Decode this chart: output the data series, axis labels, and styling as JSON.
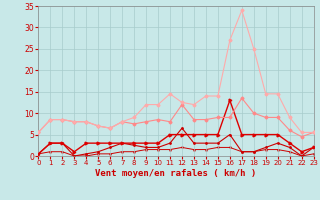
{
  "x": [
    0,
    1,
    2,
    3,
    4,
    5,
    6,
    7,
    8,
    9,
    10,
    11,
    12,
    13,
    14,
    15,
    16,
    17,
    18,
    19,
    20,
    21,
    22,
    23
  ],
  "series": [
    {
      "label": "lightest_pink",
      "color": "#ffaaaa",
      "linewidth": 0.8,
      "marker": "D",
      "markersize": 1.5,
      "values": [
        5.5,
        8.5,
        8.5,
        8.0,
        8.0,
        7.0,
        6.5,
        8.0,
        9.0,
        12.0,
        12.0,
        14.5,
        12.5,
        12.0,
        14.0,
        14.0,
        27.0,
        34.0,
        25.0,
        14.5,
        14.5,
        9.0,
        5.5,
        5.5
      ]
    },
    {
      "label": "medium_pink",
      "color": "#ff8888",
      "linewidth": 0.8,
      "marker": "D",
      "markersize": 1.5,
      "values": [
        5.5,
        8.5,
        8.5,
        8.0,
        8.0,
        7.0,
        6.5,
        8.0,
        7.5,
        8.0,
        8.5,
        8.0,
        12.0,
        8.5,
        8.5,
        9.0,
        9.0,
        13.5,
        10.0,
        9.0,
        9.0,
        6.0,
        4.5,
        5.5
      ]
    },
    {
      "label": "dark_red_main",
      "color": "#dd0000",
      "linewidth": 1.0,
      "marker": ">",
      "markersize": 2.0,
      "values": [
        0.5,
        3.0,
        3.0,
        1.0,
        3.0,
        3.0,
        3.0,
        3.0,
        3.0,
        3.0,
        3.0,
        5.0,
        5.0,
        5.0,
        5.0,
        5.0,
        13.0,
        5.0,
        5.0,
        5.0,
        5.0,
        3.0,
        1.0,
        2.0
      ]
    },
    {
      "label": "dark_red_lower",
      "color": "#cc0000",
      "linewidth": 0.8,
      "marker": ".",
      "markersize": 2.0,
      "values": [
        0.5,
        3.0,
        3.0,
        0.0,
        0.5,
        1.0,
        2.0,
        3.0,
        2.5,
        2.0,
        2.0,
        3.0,
        6.5,
        3.0,
        3.0,
        3.0,
        5.0,
        1.0,
        1.0,
        2.0,
        3.0,
        2.0,
        0.0,
        2.0
      ]
    },
    {
      "label": "flat_low",
      "color": "#cc0000",
      "linewidth": 0.7,
      "marker": ".",
      "markersize": 1.5,
      "values": [
        0.5,
        1.0,
        1.0,
        0.0,
        0.0,
        0.5,
        0.5,
        1.0,
        1.0,
        1.5,
        1.5,
        1.5,
        2.0,
        1.5,
        1.5,
        2.0,
        2.0,
        1.0,
        1.0,
        1.5,
        1.5,
        1.0,
        0.0,
        0.5
      ]
    }
  ],
  "xlabel": "Vent moyen/en rafales ( km/h )",
  "ylim": [
    0,
    35
  ],
  "xlim": [
    0,
    23
  ],
  "yticks": [
    0,
    5,
    10,
    15,
    20,
    25,
    30,
    35
  ],
  "xticks": [
    0,
    1,
    2,
    3,
    4,
    5,
    6,
    7,
    8,
    9,
    10,
    11,
    12,
    13,
    14,
    15,
    16,
    17,
    18,
    19,
    20,
    21,
    22,
    23
  ],
  "grid_color": "#a8cccc",
  "bg_color": "#c8e8e8",
  "label_color": "#cc0000",
  "axis_color": "#888888",
  "xlabel_fontsize": 6.5,
  "ytick_fontsize": 5.5,
  "xtick_fontsize": 5.0
}
